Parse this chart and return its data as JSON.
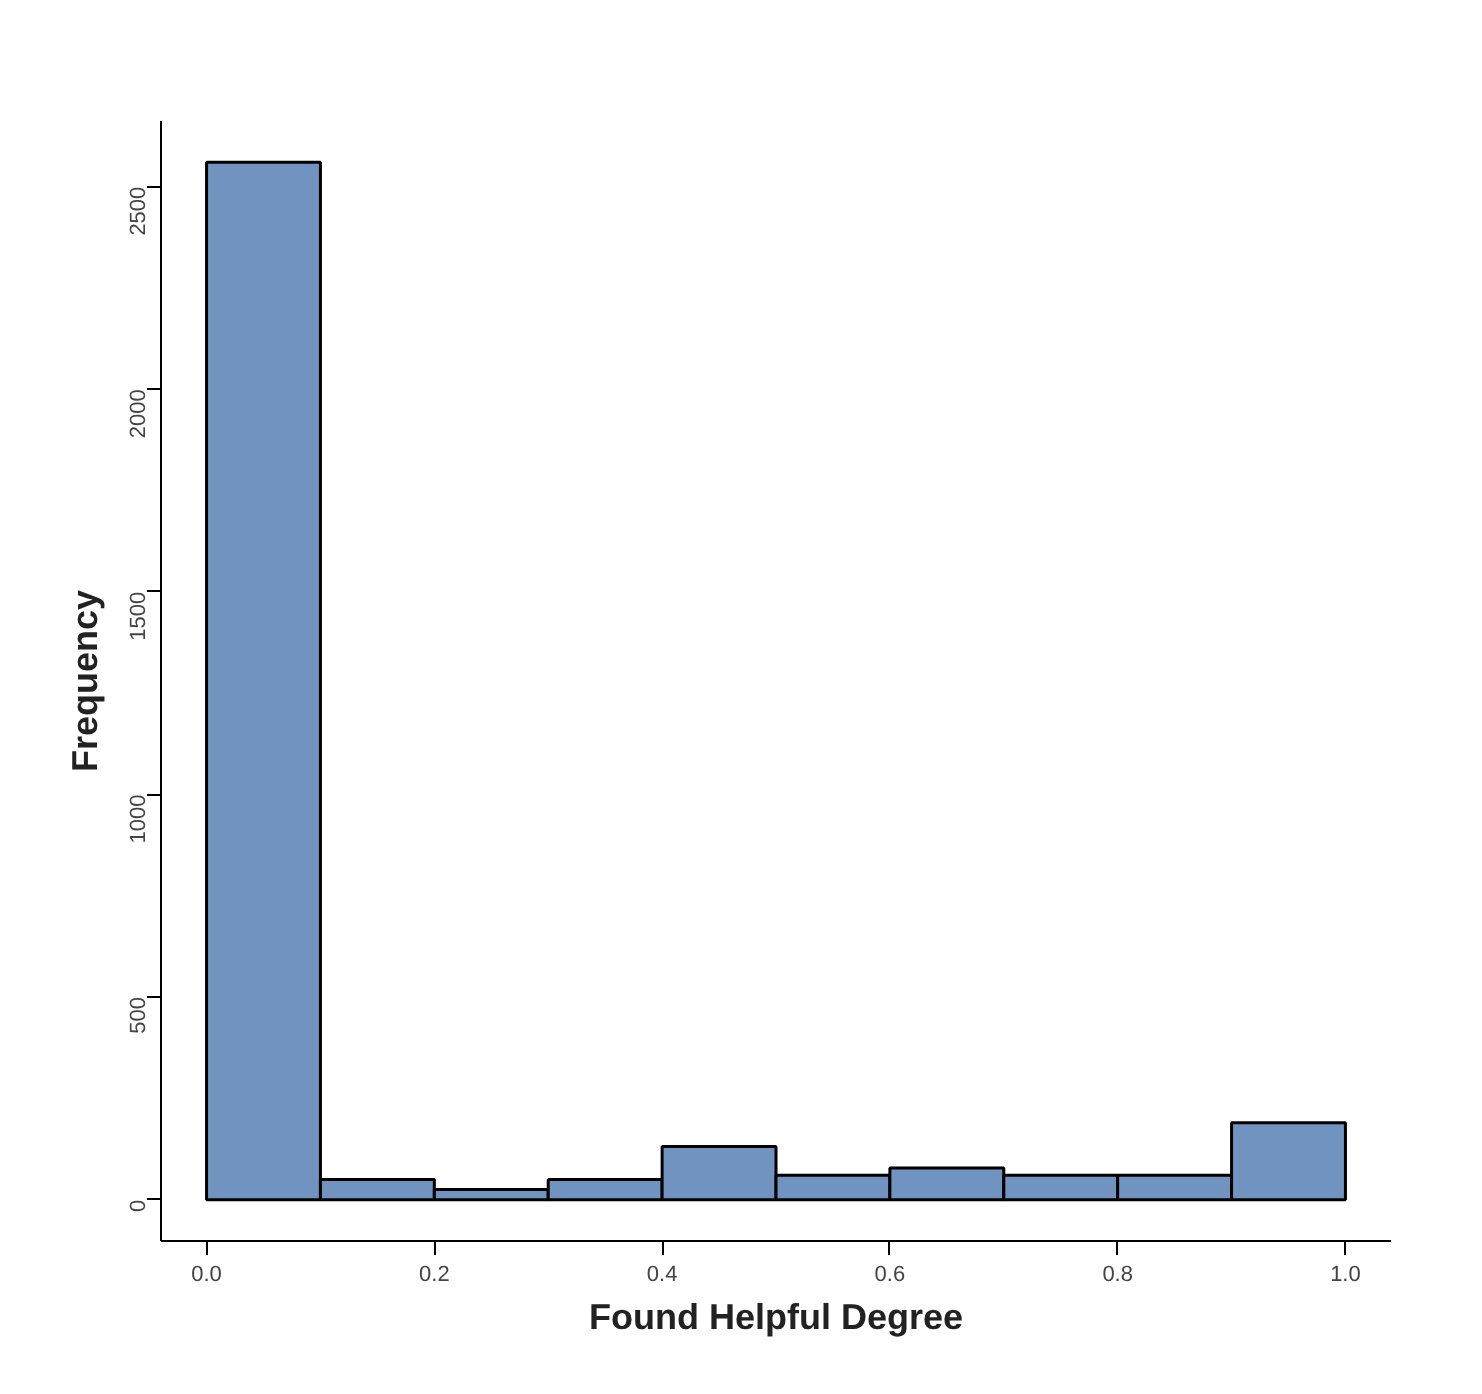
{
  "chart_data": {
    "type": "histogram",
    "xlabel": "Found Helpful Degree",
    "ylabel": "Frequency",
    "bins": [
      0.0,
      0.1,
      0.2,
      0.3,
      0.4,
      0.5,
      0.6,
      0.7,
      0.8,
      0.9,
      1.0
    ],
    "values": [
      2560,
      50,
      25,
      50,
      131,
      60,
      78,
      60,
      60,
      190
    ],
    "color": "#7093bf",
    "xlim": [
      -0.04,
      1.04
    ],
    "ylim": [
      -102,
      2662
    ],
    "xticks": [
      {
        "value": 0,
        "label": "0.0"
      },
      {
        "value": 0.2,
        "label": "0.2"
      },
      {
        "value": 0.4,
        "label": "0.4"
      },
      {
        "value": 0.6,
        "label": "0.6"
      },
      {
        "value": 0.8,
        "label": "0.8"
      },
      {
        "value": 1.0,
        "label": "1.0"
      }
    ],
    "yticks": [
      0,
      500,
      1000,
      1500,
      2000,
      2500
    ],
    "grid": false
  }
}
